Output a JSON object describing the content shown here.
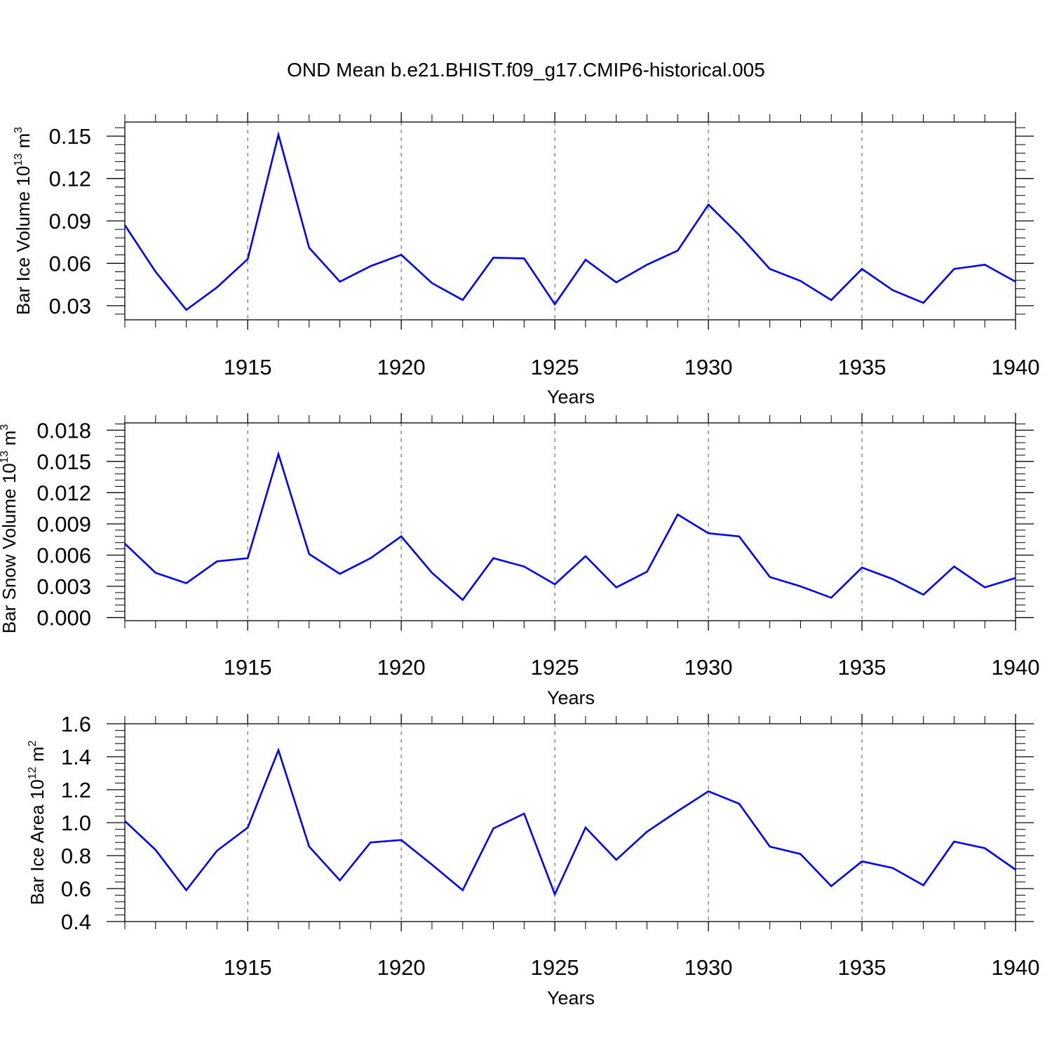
{
  "title": "OND Mean b.e21.BHIST.f09_g17.CMIP6-historical.005",
  "chart_data": [
    {
      "type": "line",
      "ylabel": "Bar Ice Volume 10",
      "ylabel_exp": "13",
      "ylabel_unit": " m",
      "ylabel_unit_exp": "3",
      "xlabel": "Years",
      "xlim": [
        1911,
        1940
      ],
      "ylim": [
        0.02,
        0.16
      ],
      "yticks": [
        0.03,
        0.06,
        0.09,
        0.12,
        0.15
      ],
      "ytick_labels": [
        "0.03",
        "0.06",
        "0.09",
        "0.12",
        "0.15"
      ],
      "xticks": [
        1915,
        1920,
        1925,
        1930,
        1935,
        1940
      ],
      "xtick_labels": [
        "1915",
        "1920",
        "1925",
        "1930",
        "1935",
        "1940"
      ],
      "x": [
        1911,
        1912,
        1913,
        1914,
        1915,
        1916,
        1917,
        1918,
        1919,
        1920,
        1921,
        1922,
        1923,
        1924,
        1925,
        1926,
        1927,
        1928,
        1929,
        1930,
        1931,
        1932,
        1933,
        1934,
        1935,
        1936,
        1937,
        1938,
        1939,
        1940
      ],
      "values": [
        0.087,
        0.054,
        0.027,
        0.043,
        0.063,
        0.151,
        0.071,
        0.047,
        0.058,
        0.066,
        0.046,
        0.034,
        0.064,
        0.0635,
        0.031,
        0.0625,
        0.0465,
        0.059,
        0.069,
        0.1015,
        0.08,
        0.056,
        0.0475,
        0.034,
        0.056,
        0.041,
        0.032,
        0.056,
        0.059,
        0.047
      ]
    },
    {
      "type": "line",
      "ylabel": "Bar Snow Volume 10",
      "ylabel_exp": "13",
      "ylabel_unit": " m",
      "ylabel_unit_exp": "3",
      "xlabel": "Years",
      "xlim": [
        1911,
        1940
      ],
      "ylim": [
        -0.0003,
        0.0187
      ],
      "yticks": [
        0.0,
        0.003,
        0.006,
        0.009,
        0.012,
        0.015,
        0.018
      ],
      "ytick_labels": [
        "0.000",
        "0.003",
        "0.006",
        "0.009",
        "0.012",
        "0.015",
        "0.018"
      ],
      "xticks": [
        1915,
        1920,
        1925,
        1930,
        1935,
        1940
      ],
      "xtick_labels": [
        "1915",
        "1920",
        "1925",
        "1930",
        "1935",
        "1940"
      ],
      "x": [
        1911,
        1912,
        1913,
        1914,
        1915,
        1916,
        1917,
        1918,
        1919,
        1920,
        1921,
        1922,
        1923,
        1924,
        1925,
        1926,
        1927,
        1928,
        1929,
        1930,
        1931,
        1932,
        1933,
        1934,
        1935,
        1936,
        1937,
        1938,
        1939,
        1940
      ],
      "values": [
        0.0071,
        0.0043,
        0.0033,
        0.0054,
        0.0057,
        0.0157,
        0.0061,
        0.0042,
        0.0057,
        0.0078,
        0.0043,
        0.0017,
        0.0057,
        0.0049,
        0.0032,
        0.0059,
        0.0029,
        0.0044,
        0.0099,
        0.0081,
        0.0078,
        0.0039,
        0.003,
        0.0019,
        0.0048,
        0.0037,
        0.0022,
        0.0049,
        0.0029,
        0.0038
      ]
    },
    {
      "type": "line",
      "ylabel": "Bar Ice Area 10",
      "ylabel_exp": "12",
      "ylabel_unit": " m",
      "ylabel_unit_exp": "2",
      "xlabel": "Years",
      "xlim": [
        1911,
        1940
      ],
      "ylim": [
        0.4,
        1.6
      ],
      "yticks": [
        0.4,
        0.6,
        0.8,
        1.0,
        1.2,
        1.4,
        1.6
      ],
      "ytick_labels": [
        "0.4",
        "0.6",
        "0.8",
        "1.0",
        "1.2",
        "1.4",
        "1.6"
      ],
      "xticks": [
        1915,
        1920,
        1925,
        1930,
        1935,
        1940
      ],
      "xtick_labels": [
        "1915",
        "1920",
        "1925",
        "1930",
        "1935",
        "1940"
      ],
      "x": [
        1911,
        1912,
        1913,
        1914,
        1915,
        1916,
        1917,
        1918,
        1919,
        1920,
        1921,
        1922,
        1923,
        1924,
        1925,
        1926,
        1927,
        1928,
        1929,
        1930,
        1931,
        1932,
        1933,
        1934,
        1935,
        1936,
        1937,
        1938,
        1939,
        1940
      ],
      "values": [
        1.01,
        0.835,
        0.59,
        0.83,
        0.97,
        1.44,
        0.855,
        0.65,
        0.88,
        0.895,
        0.745,
        0.59,
        0.965,
        1.055,
        0.565,
        0.97,
        0.775,
        0.945,
        1.07,
        1.19,
        1.115,
        0.855,
        0.81,
        0.615,
        0.765,
        0.725,
        0.62,
        0.885,
        0.845,
        0.715
      ]
    }
  ],
  "colors": {
    "series": "#0000ff",
    "axis": "#000000",
    "grid": "#555555"
  }
}
